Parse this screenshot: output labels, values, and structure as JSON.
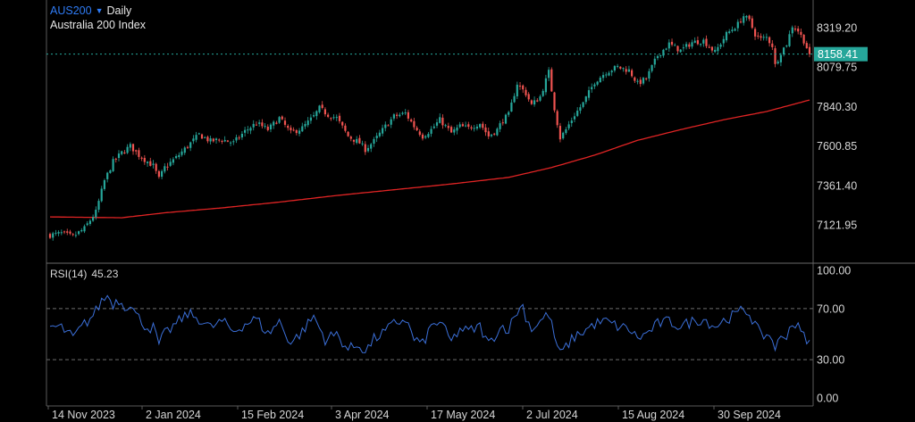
{
  "legend": {
    "symbol": "AUS200",
    "timeframe": "Daily",
    "name": "Australia 200 Index"
  },
  "price_axis": {
    "ticks": [
      "8319.20",
      "8079.75",
      "7840.30",
      "7600.85",
      "7361.40",
      "7121.95"
    ],
    "current": "8158.41"
  },
  "rsi_panel": {
    "label": "RSI(14)",
    "value": "45.23",
    "ticks": [
      "100.00",
      "70.00",
      "30.00",
      "0.00"
    ]
  },
  "time_axis": {
    "labels": [
      "14 Nov 2023",
      "2 Jan 2024",
      "15 Feb 2024",
      "3 Apr 2024",
      "17 May 2024",
      "2 Jul 2024",
      "15 Aug 2024",
      "30 Sep 2024"
    ]
  },
  "colors": {
    "up": "#26a69a",
    "down": "#ef5350",
    "ma": "#e02424",
    "rsi": "#3b6fd8",
    "current_badge": "#26a69a"
  },
  "chart_data": [
    {
      "type": "candlestick",
      "symbol": "AUS200",
      "timeframe": "Daily",
      "title": "Australia 200 Index",
      "ylim": [
        7050,
        8420
      ],
      "y_ticks": [
        8319.2,
        8079.75,
        7840.3,
        7600.85,
        7361.4,
        7121.95
      ],
      "x_labels": [
        "14 Nov 2023",
        "2 Jan 2024",
        "15 Feb 2024",
        "3 Apr 2024",
        "17 May 2024",
        "2 Jul 2024",
        "15 Aug 2024",
        "30 Sep 2024"
      ],
      "last_price": 8158.41,
      "close_path": [
        [
          0,
          7060
        ],
        [
          4,
          7070
        ],
        [
          8,
          7050
        ],
        [
          12,
          7100
        ],
        [
          16,
          7200
        ],
        [
          19,
          7390
        ],
        [
          22,
          7505
        ],
        [
          25,
          7560
        ],
        [
          28,
          7600
        ],
        [
          31,
          7545
        ],
        [
          34,
          7505
        ],
        [
          36,
          7480
        ],
        [
          38,
          7400
        ],
        [
          40,
          7470
        ],
        [
          44,
          7530
        ],
        [
          48,
          7600
        ],
        [
          52,
          7670
        ],
        [
          56,
          7630
        ],
        [
          60,
          7640
        ],
        [
          64,
          7620
        ],
        [
          68,
          7690
        ],
        [
          72,
          7740
        ],
        [
          76,
          7700
        ],
        [
          80,
          7770
        ],
        [
          84,
          7680
        ],
        [
          88,
          7710
        ],
        [
          92,
          7780
        ],
        [
          94,
          7830
        ],
        [
          97,
          7790
        ],
        [
          100,
          7770
        ],
        [
          104,
          7660
        ],
        [
          108,
          7620
        ],
        [
          110,
          7580
        ],
        [
          113,
          7630
        ],
        [
          117,
          7720
        ],
        [
          120,
          7780
        ],
        [
          124,
          7800
        ],
        [
          127,
          7720
        ],
        [
          130,
          7660
        ],
        [
          133,
          7700
        ],
        [
          136,
          7760
        ],
        [
          140,
          7680
        ],
        [
          143,
          7720
        ],
        [
          146,
          7710
        ],
        [
          150,
          7740
        ],
        [
          153,
          7660
        ],
        [
          156,
          7700
        ],
        [
          158,
          7760
        ],
        [
          160,
          7790
        ],
        [
          163,
          7980
        ],
        [
          166,
          7920
        ],
        [
          168,
          7850
        ],
        [
          171,
          7900
        ],
        [
          174,
          8050
        ],
        [
          176,
          7830
        ],
        [
          178,
          7650
        ],
        [
          180,
          7700
        ],
        [
          183,
          7790
        ],
        [
          186,
          7860
        ],
        [
          190,
          7990
        ],
        [
          194,
          8050
        ],
        [
          198,
          8080
        ],
        [
          202,
          8060
        ],
        [
          205,
          7980
        ],
        [
          208,
          8010
        ],
        [
          212,
          8150
        ],
        [
          216,
          8220
        ],
        [
          220,
          8180
        ],
        [
          224,
          8230
        ],
        [
          228,
          8240
        ],
        [
          232,
          8170
        ],
        [
          236,
          8280
        ],
        [
          240,
          8340
        ],
        [
          242,
          8390
        ],
        [
          244,
          8360
        ],
        [
          246,
          8280
        ],
        [
          248,
          8250
        ],
        [
          250,
          8260
        ],
        [
          252,
          8210
        ],
        [
          253,
          8090
        ],
        [
          255,
          8170
        ],
        [
          257,
          8220
        ],
        [
          259,
          8330
        ],
        [
          261,
          8300
        ],
        [
          263,
          8240
        ],
        [
          265,
          8158.41
        ]
      ],
      "moving_average": {
        "color": "#e02424",
        "values": [
          [
            0,
            7170
          ],
          [
            25,
            7165
          ],
          [
            40,
            7195
          ],
          [
            60,
            7225
          ],
          [
            80,
            7260
          ],
          [
            100,
            7300
          ],
          [
            120,
            7335
          ],
          [
            140,
            7370
          ],
          [
            160,
            7410
          ],
          [
            175,
            7470
          ],
          [
            190,
            7545
          ],
          [
            205,
            7635
          ],
          [
            220,
            7700
          ],
          [
            235,
            7760
          ],
          [
            250,
            7810
          ],
          [
            265,
            7880
          ]
        ]
      }
    },
    {
      "type": "line",
      "title": "RSI(14)",
      "last_value": 45.23,
      "ylim": [
        0,
        100
      ],
      "y_ticks": [
        100,
        70,
        30,
        0
      ],
      "bands": [
        70,
        30
      ],
      "series": [
        {
          "name": "RSI(14)",
          "values": [
            [
              0,
              56
            ],
            [
              4,
              55
            ],
            [
              8,
              47
            ],
            [
              12,
              58
            ],
            [
              14,
              62
            ],
            [
              16,
              68
            ],
            [
              18,
              76
            ],
            [
              20,
              80
            ],
            [
              22,
              74
            ],
            [
              24,
              77
            ],
            [
              26,
              72
            ],
            [
              28,
              74
            ],
            [
              30,
              65
            ],
            [
              32,
              60
            ],
            [
              34,
              55
            ],
            [
              36,
              55
            ],
            [
              38,
              42
            ],
            [
              40,
              50
            ],
            [
              44,
              58
            ],
            [
              48,
              66
            ],
            [
              52,
              62
            ],
            [
              56,
              55
            ],
            [
              60,
              60
            ],
            [
              64,
              52
            ],
            [
              68,
              58
            ],
            [
              72,
              62
            ],
            [
              76,
              50
            ],
            [
              80,
              60
            ],
            [
              84,
              43
            ],
            [
              88,
              52
            ],
            [
              92,
              64
            ],
            [
              96,
              46
            ],
            [
              100,
              50
            ],
            [
              104,
              38
            ],
            [
              108,
              42
            ],
            [
              110,
              36
            ],
            [
              113,
              46
            ],
            [
              117,
              52
            ],
            [
              120,
              58
            ],
            [
              124,
              62
            ],
            [
              127,
              46
            ],
            [
              130,
              42
            ],
            [
              133,
              56
            ],
            [
              136,
              60
            ],
            [
              140,
              44
            ],
            [
              143,
              54
            ],
            [
              146,
              52
            ],
            [
              150,
              56
            ],
            [
              153,
              42
            ],
            [
              156,
              52
            ],
            [
              158,
              56
            ],
            [
              160,
              54
            ],
            [
              163,
              68
            ],
            [
              165,
              72
            ],
            [
              166,
              64
            ],
            [
              168,
              54
            ],
            [
              171,
              60
            ],
            [
              174,
              66
            ],
            [
              176,
              48
            ],
            [
              178,
              34
            ],
            [
              180,
              40
            ],
            [
              183,
              48
            ],
            [
              186,
              52
            ],
            [
              190,
              58
            ],
            [
              194,
              60
            ],
            [
              198,
              56
            ],
            [
              202,
              54
            ],
            [
              205,
              47
            ],
            [
              208,
              50
            ],
            [
              212,
              58
            ],
            [
              216,
              60
            ],
            [
              220,
              56
            ],
            [
              224,
              60
            ],
            [
              228,
              62
            ],
            [
              232,
              56
            ],
            [
              236,
              62
            ],
            [
              240,
              66
            ],
            [
              242,
              70
            ],
            [
              244,
              66
            ],
            [
              246,
              58
            ],
            [
              248,
              48
            ],
            [
              250,
              50
            ],
            [
              252,
              46
            ],
            [
              253,
              40
            ],
            [
              255,
              46
            ],
            [
              257,
              50
            ],
            [
              259,
              59
            ],
            [
              261,
              55
            ],
            [
              263,
              48
            ],
            [
              265,
              45.23
            ]
          ]
        }
      ]
    }
  ]
}
